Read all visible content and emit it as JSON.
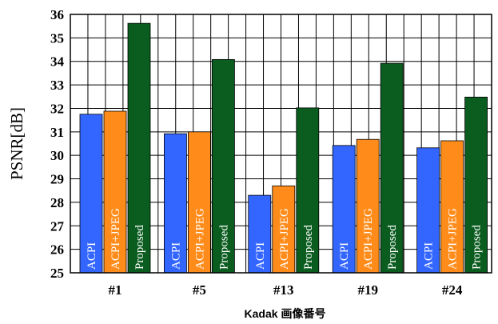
{
  "chart_data": {
    "type": "bar",
    "categories": [
      "#1",
      "#5",
      "#13",
      "#19",
      "#24"
    ],
    "series": [
      {
        "name": "ACPI",
        "values": [
          31.75,
          30.92,
          28.3,
          30.42,
          30.32
        ],
        "color": "#3366ff"
      },
      {
        "name": "ACPI+JPEG",
        "values": [
          31.88,
          31.0,
          28.7,
          30.68,
          30.62
        ],
        "color": "#ff8c1a"
      },
      {
        "name": "Proposed",
        "values": [
          35.62,
          34.08,
          32.02,
          33.92,
          32.48
        ],
        "color": "#0a5c1f"
      }
    ],
    "title": "",
    "xlabel": "Kadak 画像番号",
    "ylabel": "PSNR[dB]",
    "ylim": [
      25,
      36
    ],
    "yticks": [
      25,
      26,
      27,
      28,
      29,
      30,
      31,
      32,
      33,
      34,
      35,
      36
    ],
    "grid": true,
    "legend": "none (series names printed inside bars)"
  }
}
